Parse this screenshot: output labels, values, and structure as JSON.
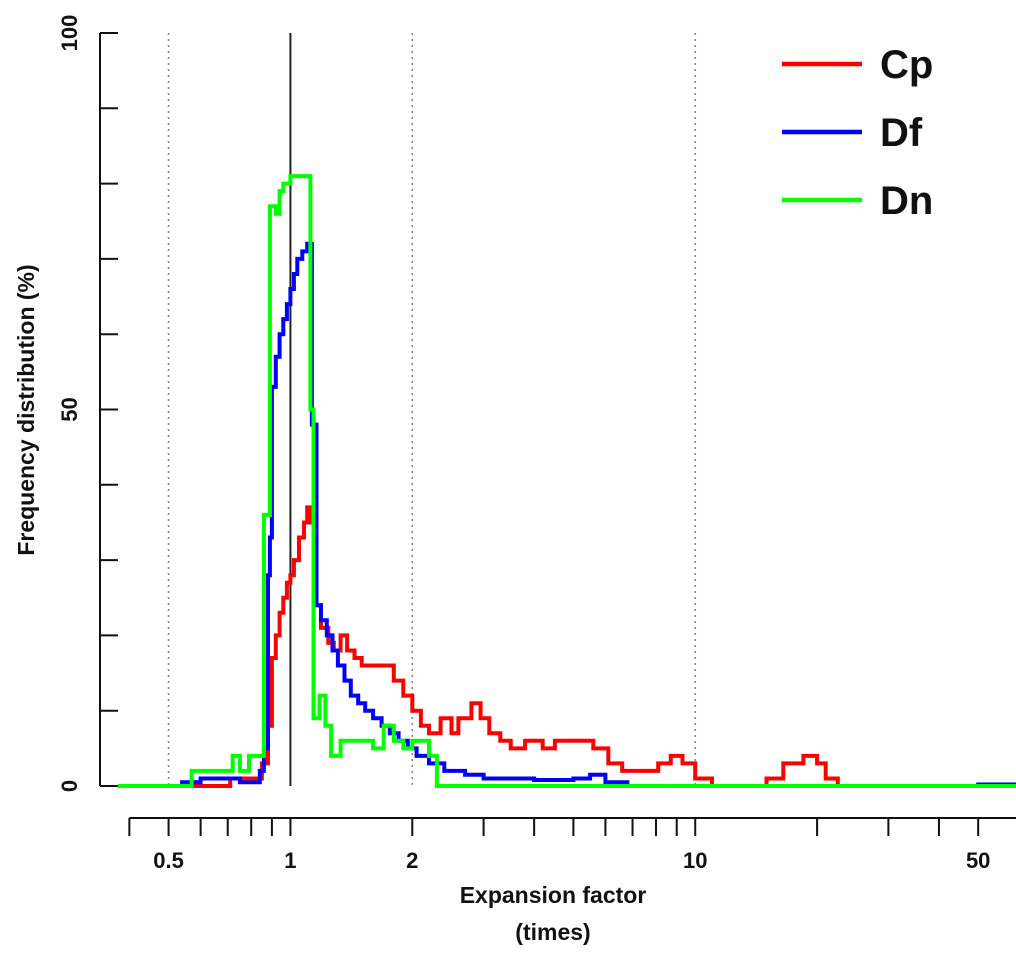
{
  "chart_data": {
    "type": "line",
    "step": true,
    "x_scale": "log",
    "xlim": [
      0.375,
      62
    ],
    "ylim": [
      0,
      100
    ],
    "xlabel_line1": "Expansion factor",
    "xlabel_line2": "(times)",
    "ylabel": "Frequency distribution (%)",
    "y_ticks": [
      0,
      50,
      100
    ],
    "y_minor_ticks": [
      10,
      20,
      30,
      40,
      60,
      70,
      80,
      90
    ],
    "x_major_ticks": [
      0.5,
      1,
      2,
      10,
      50
    ],
    "x_major_tick_labels": [
      "0.5",
      "1",
      "2",
      "10",
      "50"
    ],
    "x_minor_ticks": [
      0.4,
      0.6,
      0.7,
      0.8,
      0.9,
      3,
      4,
      5,
      6,
      7,
      8,
      9,
      20,
      30,
      40
    ],
    "dotted_reference_lines": [
      0.5,
      2,
      10
    ],
    "solid_reference_line": 1,
    "legend_position": "top-right",
    "series": [
      {
        "name": "Cp",
        "color": "#ff0000",
        "points": [
          [
            0.375,
            0
          ],
          [
            0.56,
            0
          ],
          [
            0.71,
            1
          ],
          [
            0.79,
            1
          ],
          [
            0.85,
            3
          ],
          [
            0.88,
            8
          ],
          [
            0.9,
            17
          ],
          [
            0.92,
            20
          ],
          [
            0.94,
            23
          ],
          [
            0.96,
            25
          ],
          [
            0.98,
            27
          ],
          [
            1.0,
            28
          ],
          [
            1.02,
            30
          ],
          [
            1.05,
            33
          ],
          [
            1.08,
            35
          ],
          [
            1.1,
            37
          ],
          [
            1.12,
            35
          ],
          [
            1.15,
            24
          ],
          [
            1.19,
            21
          ],
          [
            1.24,
            19
          ],
          [
            1.28,
            18
          ],
          [
            1.33,
            20
          ],
          [
            1.38,
            18
          ],
          [
            1.44,
            17
          ],
          [
            1.5,
            16
          ],
          [
            1.7,
            16
          ],
          [
            1.8,
            14
          ],
          [
            1.9,
            12
          ],
          [
            2.0,
            10
          ],
          [
            2.1,
            8
          ],
          [
            2.2,
            7
          ],
          [
            2.35,
            9
          ],
          [
            2.5,
            7
          ],
          [
            2.6,
            9
          ],
          [
            2.8,
            11
          ],
          [
            2.95,
            9
          ],
          [
            3.1,
            7
          ],
          [
            3.3,
            6
          ],
          [
            3.5,
            5
          ],
          [
            3.8,
            6
          ],
          [
            4.2,
            5
          ],
          [
            4.4,
            5
          ],
          [
            4.5,
            6
          ],
          [
            5.2,
            6
          ],
          [
            5.6,
            5
          ],
          [
            6.1,
            3
          ],
          [
            6.6,
            2
          ],
          [
            7.6,
            2
          ],
          [
            8.1,
            3
          ],
          [
            8.7,
            4
          ],
          [
            9.3,
            3
          ],
          [
            10.0,
            1
          ],
          [
            11.0,
            0
          ],
          [
            14.0,
            0
          ],
          [
            15.0,
            1
          ],
          [
            16.5,
            3
          ],
          [
            18.5,
            4
          ],
          [
            20.0,
            3
          ],
          [
            21.0,
            1
          ],
          [
            22.5,
            0
          ],
          [
            62,
            0
          ]
        ]
      },
      {
        "name": "Df",
        "color": "#0000ff",
        "points": [
          [
            0.375,
            0
          ],
          [
            0.48,
            0
          ],
          [
            0.54,
            0.5
          ],
          [
            0.6,
            1
          ],
          [
            0.75,
            0.5
          ],
          [
            0.84,
            2
          ],
          [
            0.86,
            5
          ],
          [
            0.88,
            28
          ],
          [
            0.89,
            33
          ],
          [
            0.9,
            53
          ],
          [
            0.92,
            57
          ],
          [
            0.94,
            60
          ],
          [
            0.96,
            62
          ],
          [
            0.98,
            64
          ],
          [
            1.0,
            66
          ],
          [
            1.02,
            68
          ],
          [
            1.04,
            70
          ],
          [
            1.07,
            71
          ],
          [
            1.1,
            72
          ],
          [
            1.13,
            48
          ],
          [
            1.16,
            24
          ],
          [
            1.19,
            22
          ],
          [
            1.23,
            20
          ],
          [
            1.27,
            18
          ],
          [
            1.31,
            16
          ],
          [
            1.36,
            14
          ],
          [
            1.41,
            12
          ],
          [
            1.47,
            11
          ],
          [
            1.53,
            10
          ],
          [
            1.6,
            9
          ],
          [
            1.68,
            8
          ],
          [
            1.76,
            7
          ],
          [
            1.85,
            6
          ],
          [
            1.95,
            5
          ],
          [
            2.05,
            4
          ],
          [
            2.2,
            3
          ],
          [
            2.4,
            2
          ],
          [
            2.7,
            1.5
          ],
          [
            3.0,
            1
          ],
          [
            3.5,
            1
          ],
          [
            4.0,
            0.8
          ],
          [
            5.0,
            1
          ],
          [
            5.5,
            1.5
          ],
          [
            6.0,
            0.5
          ],
          [
            6.8,
            0
          ],
          [
            8.0,
            0
          ],
          [
            41,
            0
          ],
          [
            50,
            0.2
          ],
          [
            62,
            0
          ]
        ]
      },
      {
        "name": "Dn",
        "color": "#00ff00",
        "points": [
          [
            0.375,
            0
          ],
          [
            0.56,
            0
          ],
          [
            0.57,
            2
          ],
          [
            0.71,
            2
          ],
          [
            0.72,
            4
          ],
          [
            0.75,
            2
          ],
          [
            0.79,
            4
          ],
          [
            0.83,
            4
          ],
          [
            0.86,
            36
          ],
          [
            0.89,
            77
          ],
          [
            0.91,
            77
          ],
          [
            0.92,
            76
          ],
          [
            0.94,
            79
          ],
          [
            0.96,
            80
          ],
          [
            1.0,
            81
          ],
          [
            1.08,
            81
          ],
          [
            1.11,
            81
          ],
          [
            1.12,
            50
          ],
          [
            1.14,
            9
          ],
          [
            1.18,
            12
          ],
          [
            1.22,
            8
          ],
          [
            1.26,
            4
          ],
          [
            1.33,
            6
          ],
          [
            1.5,
            6
          ],
          [
            1.6,
            5
          ],
          [
            1.7,
            8
          ],
          [
            1.8,
            6
          ],
          [
            1.9,
            5
          ],
          [
            2.0,
            6
          ],
          [
            2.2,
            4
          ],
          [
            2.3,
            0
          ],
          [
            62,
            0
          ]
        ]
      }
    ]
  }
}
